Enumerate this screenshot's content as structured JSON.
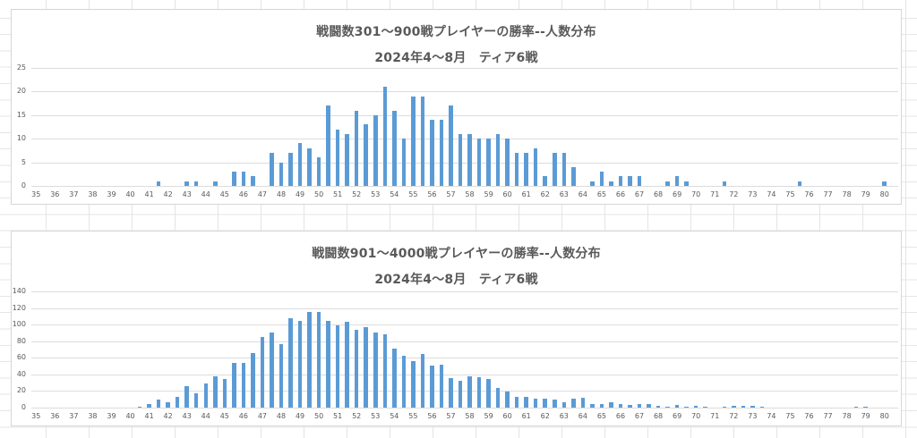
{
  "app": {
    "kind": "spreadsheet with two embedded bar charts",
    "sheet_gridline_color": "#e5e5e5",
    "chart_border_color": "#d6d6d6",
    "text_color": "#595959",
    "accent_color": "#5B9BD5"
  },
  "chart_data": [
    {
      "type": "bar",
      "title": "戦闘数301〜900戦プレイヤーの勝率--人数分布",
      "subtitle": "2024年4〜8月　ティア6戦",
      "xlabel": "",
      "ylabel": "",
      "ylim": [
        0,
        25
      ],
      "ytick_interval": 5,
      "grid": true,
      "legend": "none",
      "bar_color": "#5B9BD5",
      "y_tick_labels": [
        "0",
        "5",
        "10",
        "15",
        "20",
        "25"
      ],
      "x_tick_labels": [
        "35",
        "36",
        "37",
        "38",
        "39",
        "40",
        "41",
        "42",
        "43",
        "44",
        "45",
        "46",
        "47",
        "48",
        "49",
        "50",
        "51",
        "52",
        "53",
        "54",
        "55",
        "56",
        "57",
        "58",
        "59",
        "60",
        "61",
        "62",
        "63",
        "64",
        "65",
        "66",
        "67",
        "68",
        "69",
        "70",
        "71",
        "72",
        "73",
        "74",
        "75",
        "76",
        "77",
        "78",
        "79",
        "80"
      ],
      "categories": [
        35,
        35.5,
        36,
        36.5,
        37,
        37.5,
        38,
        38.5,
        39,
        39.5,
        40,
        40.5,
        41,
        41.5,
        42,
        42.5,
        43,
        43.5,
        44,
        44.5,
        45,
        45.5,
        46,
        46.5,
        47,
        47.5,
        48,
        48.5,
        49,
        49.5,
        50,
        50.5,
        51,
        51.5,
        52,
        52.5,
        53,
        53.5,
        54,
        54.5,
        55,
        55.5,
        56,
        56.5,
        57,
        57.5,
        58,
        58.5,
        59,
        59.5,
        60,
        60.5,
        61,
        61.5,
        62,
        62.5,
        63,
        63.5,
        64,
        64.5,
        65,
        65.5,
        66,
        66.5,
        67,
        67.5,
        68,
        68.5,
        69,
        69.5,
        70,
        70.5,
        71,
        71.5,
        72,
        72.5,
        73,
        73.5,
        74,
        74.5,
        75,
        75.5,
        76,
        76.5,
        77,
        77.5,
        78,
        78.5,
        79,
        79.5,
        80
      ],
      "values": [
        0,
        0,
        0,
        0,
        0,
        0,
        0,
        0,
        0,
        0,
        0,
        0,
        0,
        1,
        0,
        0,
        1,
        1,
        0,
        1,
        0,
        3,
        3,
        2,
        0,
        7,
        5,
        7,
        9,
        8,
        6,
        17,
        12,
        11,
        16,
        13,
        15,
        21,
        16,
        10,
        19,
        19,
        14,
        14,
        17,
        11,
        11,
        10,
        10,
        11,
        10,
        7,
        7,
        8,
        2,
        7,
        7,
        4,
        0,
        1,
        3,
        1,
        2,
        2,
        2,
        0,
        0,
        1,
        2,
        1,
        0,
        0,
        0,
        1,
        0,
        0,
        0,
        0,
        0,
        0,
        0,
        1,
        0,
        0,
        0,
        0,
        0,
        0,
        0,
        0,
        1
      ]
    },
    {
      "type": "bar",
      "title": "戦闘数901〜4000戦プレイヤーの勝率--人数分布",
      "subtitle": "2024年4〜8月　ティア6戦",
      "xlabel": "",
      "ylabel": "",
      "ylim": [
        0,
        140
      ],
      "ytick_interval": 20,
      "grid": true,
      "legend": "none",
      "bar_color": "#5B9BD5",
      "y_tick_labels": [
        "0",
        "20",
        "40",
        "60",
        "80",
        "100",
        "120",
        "140"
      ],
      "x_tick_labels": [
        "35",
        "36",
        "37",
        "38",
        "39",
        "40",
        "41",
        "42",
        "43",
        "44",
        "45",
        "46",
        "47",
        "48",
        "49",
        "50",
        "51",
        "52",
        "53",
        "54",
        "55",
        "56",
        "57",
        "58",
        "59",
        "60",
        "61",
        "62",
        "63",
        "64",
        "65",
        "66",
        "67",
        "68",
        "69",
        "70",
        "71",
        "72",
        "73",
        "74",
        "75",
        "76",
        "77",
        "78",
        "79",
        "80"
      ],
      "categories": [
        35,
        35.5,
        36,
        36.5,
        37,
        37.5,
        38,
        38.5,
        39,
        39.5,
        40,
        40.5,
        41,
        41.5,
        42,
        42.5,
        43,
        43.5,
        44,
        44.5,
        45,
        45.5,
        46,
        46.5,
        47,
        47.5,
        48,
        48.5,
        49,
        49.5,
        50,
        50.5,
        51,
        51.5,
        52,
        52.5,
        53,
        53.5,
        54,
        54.5,
        55,
        55.5,
        56,
        56.5,
        57,
        57.5,
        58,
        58.5,
        59,
        59.5,
        60,
        60.5,
        61,
        61.5,
        62,
        62.5,
        63,
        63.5,
        64,
        64.5,
        65,
        65.5,
        66,
        66.5,
        67,
        67.5,
        68,
        68.5,
        69,
        69.5,
        70,
        70.5,
        71,
        71.5,
        72,
        72.5,
        73,
        73.5,
        74,
        74.5,
        75,
        75.5,
        76,
        76.5,
        77,
        77.5,
        78,
        78.5,
        79,
        79.5,
        80
      ],
      "values": [
        0,
        0,
        0,
        0,
        0,
        0,
        0,
        0,
        0,
        0,
        0,
        1,
        4,
        10,
        7,
        13,
        26,
        17,
        29,
        38,
        35,
        54,
        54,
        66,
        85,
        91,
        77,
        108,
        105,
        115,
        115,
        105,
        99,
        103,
        94,
        97,
        91,
        88,
        71,
        62,
        56,
        65,
        51,
        52,
        36,
        32,
        38,
        37,
        35,
        24,
        19,
        13,
        13,
        11,
        11,
        10,
        7,
        11,
        12,
        4,
        4,
        6,
        4,
        3,
        4,
        4,
        2,
        1,
        3,
        1,
        2,
        1,
        0,
        1,
        2,
        2,
        2,
        1,
        0,
        0,
        0,
        0,
        0,
        0,
        0,
        0,
        0,
        1,
        1,
        0,
        0
      ]
    }
  ]
}
